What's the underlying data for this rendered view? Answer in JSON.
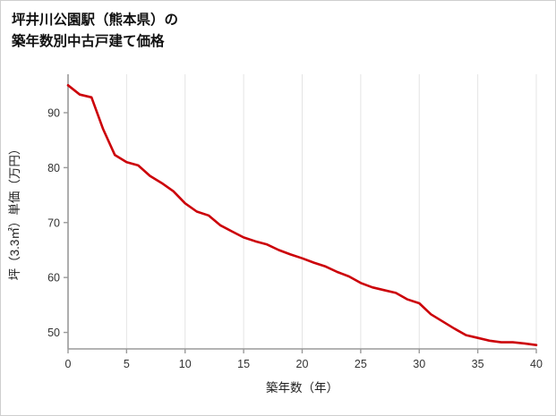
{
  "page": {
    "background": "#ffffff",
    "border_color": "#cfcfcf"
  },
  "header": {
    "title_line1": "坪井川公園駅（熊本県）の",
    "title_line2": "築年数別中古戸建て価格"
  },
  "chart_data": {
    "type": "line",
    "title": "坪井川公園駅（熊本県）の築年数別中古戸建て価格",
    "xlabel": "築年数（年）",
    "ylabel": "坪（3.3㎡）単価（万円）",
    "x": [
      0,
      1,
      2,
      3,
      4,
      5,
      6,
      7,
      8,
      9,
      10,
      11,
      12,
      13,
      14,
      15,
      16,
      17,
      18,
      19,
      20,
      21,
      22,
      23,
      24,
      25,
      26,
      27,
      28,
      29,
      30,
      31,
      32,
      33,
      34,
      35,
      36,
      37,
      38,
      39,
      40
    ],
    "values": [
      95.0,
      93.3,
      92.8,
      87.0,
      82.3,
      81.0,
      80.4,
      78.5,
      77.2,
      75.7,
      73.5,
      72.0,
      71.3,
      69.5,
      68.4,
      67.3,
      66.6,
      66.0,
      65.0,
      64.2,
      63.5,
      62.7,
      62.0,
      61.0,
      60.2,
      59.0,
      58.2,
      57.7,
      57.2,
      56.0,
      55.3,
      53.3,
      52.0,
      50.7,
      49.5,
      49.0,
      48.5,
      48.2,
      48.2,
      48.0,
      47.7
    ],
    "xticks": [
      0,
      5,
      10,
      15,
      20,
      25,
      30,
      35,
      40
    ],
    "yticks": [
      50,
      60,
      70,
      80,
      90
    ],
    "xlim": [
      0,
      40
    ],
    "ylim": [
      47,
      97
    ],
    "grid": "vertical-only",
    "legend": "none",
    "line_color": "#cc0008",
    "axis_color": "#9a9a9a",
    "grid_color": "#e4e4e4",
    "tick_label_color": "#333333",
    "axis_label_color": "#222222"
  }
}
